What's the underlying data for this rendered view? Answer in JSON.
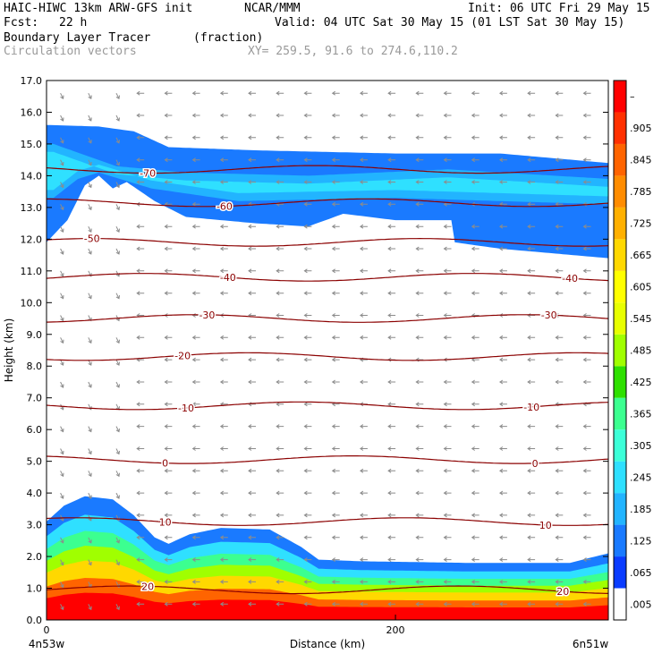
{
  "header": {
    "model": "HAIC-HIWC 13km ARW-GFS init",
    "org": "NCAR/MMM",
    "init": "Init: 06 UTC Fri 29 May 15",
    "fcst_label": "Fcst:",
    "fcst_value": "22 h",
    "valid": "Valid: 04 UTC Sat 30 May 15 (01 LST Sat 30 May 15)",
    "field_name": "Boundary Layer Tracer",
    "field_units": "(fraction)",
    "vector_label": "Circulation vectors",
    "xy_label": "XY= 259.5, 91.6 to 274.6,110.2"
  },
  "chart_data": {
    "type": "heatmap",
    "title": "Boundary Layer Tracer",
    "units": "(fraction)",
    "xlabel": "Distance (km)",
    "ylabel": "Height (km)",
    "xlim": [
      0,
      322
    ],
    "ylim": [
      0,
      17
    ],
    "x_ticks": [
      0,
      200
    ],
    "x_tick_labels": [
      "0",
      "200"
    ],
    "x_end_labels": {
      "left": "4n53w",
      "right": "6n51w"
    },
    "y_ticks": [
      0,
      1,
      2,
      3,
      4,
      5,
      6,
      7,
      8,
      9,
      10,
      11,
      12,
      13,
      14,
      15,
      16,
      17
    ],
    "y_tick_labels": [
      "0.0",
      "1.0",
      "2.0",
      "3.0",
      "4.0",
      "5.0",
      "6.0",
      "7.0",
      "8.0",
      "9.0",
      "10.0",
      "11.0",
      "12.0",
      "13.0",
      "14.0",
      "15.0",
      "16.0",
      "17.0"
    ],
    "colorbar": {
      "labels": [
        ".005",
        ".065",
        ".125",
        ".185",
        ".245",
        ".305",
        ".365",
        ".425",
        ".485",
        ".545",
        ".605",
        ".665",
        ".725",
        ".785",
        ".845",
        ".905",
        "–"
      ],
      "colors": [
        "#ffffff",
        "#0a3cff",
        "#1a7aff",
        "#22b4ff",
        "#2fe0ff",
        "#3cffd8",
        "#3cff90",
        "#2ee000",
        "#a0ff00",
        "#e8ff00",
        "#ffff00",
        "#ffd800",
        "#ffb000",
        "#ff8c00",
        "#ff6400",
        "#ff3000",
        "#ff0000"
      ]
    },
    "temperature_contours": [
      {
        "label": "20",
        "height": 0.95,
        "label_x": [
          58,
          296
        ]
      },
      {
        "label": "10",
        "height": 3.1,
        "label_x": [
          68,
          286
        ]
      },
      {
        "label": "0",
        "height": 5.05,
        "label_x": [
          68,
          280
        ]
      },
      {
        "label": "-10",
        "height": 6.75,
        "label_x": [
          80,
          278
        ]
      },
      {
        "label": "-20",
        "height": 8.3,
        "label_x": [
          78
        ]
      },
      {
        "label": "-30",
        "height": 9.5,
        "label_x": [
          92,
          288
        ]
      },
      {
        "label": "-40",
        "height": 10.8,
        "label_x": [
          104,
          300
        ]
      },
      {
        "label": "-50",
        "height": 11.9,
        "label_x": [
          26
        ]
      },
      {
        "label": "-60",
        "height": 13.15,
        "label_x": [
          102
        ]
      },
      {
        "label": "-70",
        "height": 14.2,
        "label_x": [
          58
        ]
      }
    ],
    "lower_plume": {
      "top": [
        [
          0,
          3.1
        ],
        [
          10,
          3.6
        ],
        [
          22,
          3.9
        ],
        [
          38,
          3.8
        ],
        [
          50,
          3.3
        ],
        [
          62,
          2.6
        ],
        [
          70,
          2.4
        ],
        [
          82,
          2.7
        ],
        [
          100,
          2.9
        ],
        [
          128,
          2.85
        ],
        [
          146,
          2.3
        ],
        [
          156,
          1.9
        ],
        [
          180,
          1.85
        ],
        [
          240,
          1.8
        ],
        [
          300,
          1.8
        ],
        [
          322,
          2.1
        ]
      ],
      "levels": [
        {
          "value": 0.065,
          "scale": 1.0
        },
        {
          "value": 0.185,
          "scale": 0.85
        },
        {
          "value": 0.305,
          "scale": 0.72
        },
        {
          "value": 0.425,
          "scale": 0.6
        },
        {
          "value": 0.605,
          "scale": 0.48
        },
        {
          "value": 0.785,
          "scale": 0.34
        },
        {
          "value": 0.905,
          "scale": 0.22
        }
      ]
    },
    "upper_layer": {
      "top": [
        [
          0,
          15.6
        ],
        [
          30,
          15.55
        ],
        [
          50,
          15.4
        ],
        [
          70,
          14.9
        ],
        [
          120,
          14.8
        ],
        [
          200,
          14.7
        ],
        [
          260,
          14.7
        ],
        [
          322,
          14.4
        ]
      ],
      "bottom": [
        [
          0,
          11.9
        ],
        [
          12,
          12.6
        ],
        [
          22,
          13.7
        ],
        [
          30,
          14.0
        ],
        [
          38,
          13.6
        ],
        [
          46,
          13.8
        ],
        [
          62,
          13.2
        ],
        [
          80,
          12.7
        ],
        [
          120,
          12.5
        ],
        [
          150,
          12.4
        ],
        [
          170,
          12.8
        ],
        [
          200,
          12.6
        ],
        [
          232,
          12.6
        ],
        [
          234,
          11.9
        ],
        [
          260,
          11.7
        ],
        [
          322,
          11.4
        ]
      ],
      "inner_top": [
        [
          4,
          15.0
        ],
        [
          40,
          14.3
        ],
        [
          80,
          14.1
        ],
        [
          150,
          14.0
        ],
        [
          230,
          14.2
        ],
        [
          322,
          13.9
        ]
      ],
      "inner_bottom": [
        [
          4,
          13.3
        ],
        [
          18,
          13.9
        ],
        [
          30,
          14.1
        ],
        [
          60,
          13.6
        ],
        [
          110,
          13.2
        ],
        [
          200,
          13.3
        ],
        [
          260,
          13.2
        ],
        [
          322,
          13.1
        ]
      ],
      "core_center": [
        [
          250,
          13.6
        ],
        [
          0,
          14.2
        ]
      ]
    },
    "grid": false
  }
}
